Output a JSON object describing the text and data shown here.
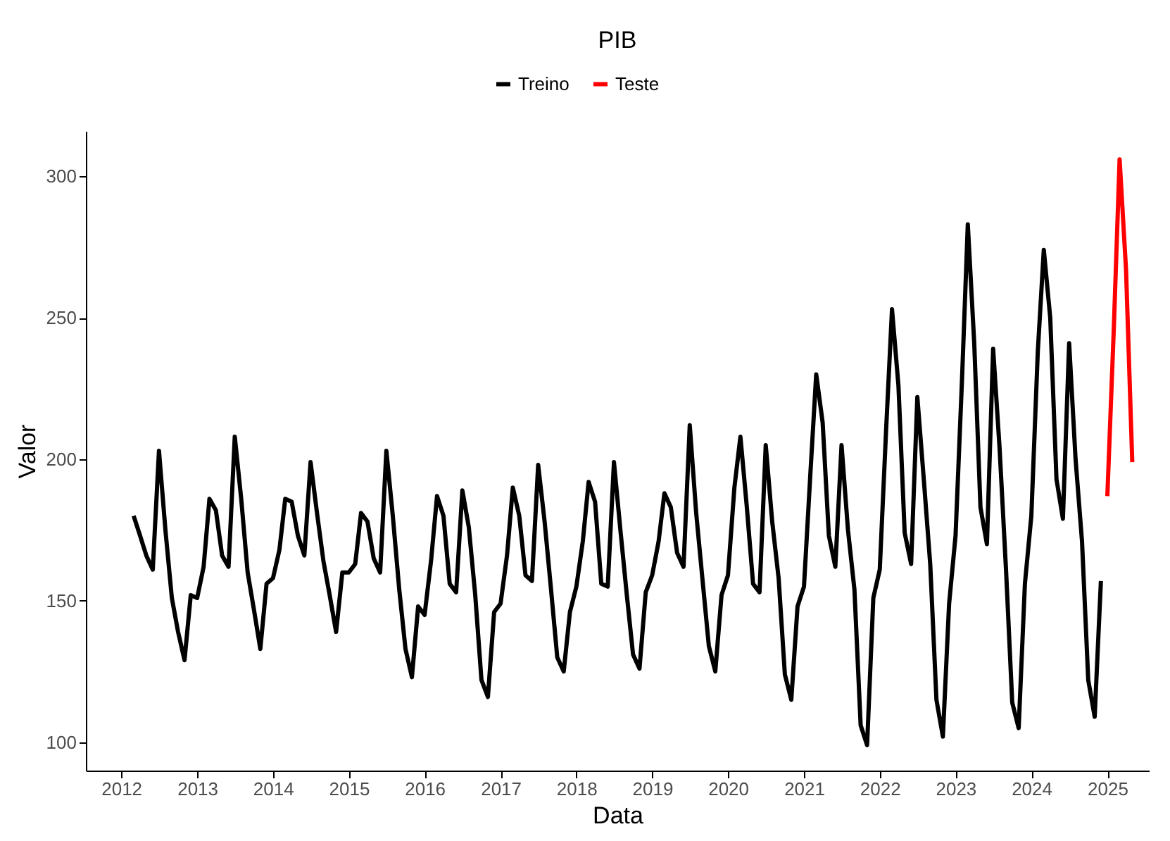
{
  "chart_data": {
    "type": "line",
    "title": "PIB",
    "xlabel": "Data",
    "ylabel": "Valor",
    "xlim": [
      "2011-07-15",
      "2025-07-20"
    ],
    "xticks": [
      {
        "value": "2012",
        "label": "2012"
      },
      {
        "value": "2013",
        "label": "2013"
      },
      {
        "value": "2014",
        "label": "2014"
      },
      {
        "value": "2015",
        "label": "2015"
      },
      {
        "value": "2016",
        "label": "2016"
      },
      {
        "value": "2017",
        "label": "2017"
      },
      {
        "value": "2018",
        "label": "2018"
      },
      {
        "value": "2019",
        "label": "2019"
      },
      {
        "value": "2020",
        "label": "2020"
      },
      {
        "value": "2021",
        "label": "2021"
      },
      {
        "value": "2022",
        "label": "2022"
      },
      {
        "value": "2023",
        "label": "2023"
      },
      {
        "value": "2024",
        "label": "2024"
      },
      {
        "value": "2025",
        "label": "2025"
      }
    ],
    "ylim": [
      90,
      316
    ],
    "yticks": [
      100,
      150,
      200,
      250,
      300
    ],
    "grid": false,
    "legend": "top",
    "line_style": "solid",
    "marker": "none",
    "series": [
      {
        "name": "Treino",
        "color": "#000000",
        "x": [
          "2012-03",
          "2012-04",
          "2012-05",
          "2012-06",
          "2012-07",
          "2012-08",
          "2012-09",
          "2012-10",
          "2012-11",
          "2012-12",
          "2013-01",
          "2013-02",
          "2013-03",
          "2013-04",
          "2013-05",
          "2013-06",
          "2013-07",
          "2013-08",
          "2013-09",
          "2013-10",
          "2013-11",
          "2013-12",
          "2014-01",
          "2014-02",
          "2014-03",
          "2014-04",
          "2014-05",
          "2014-06",
          "2014-07",
          "2014-08",
          "2014-09",
          "2014-10",
          "2014-11",
          "2014-12",
          "2015-01",
          "2015-02",
          "2015-03",
          "2015-04",
          "2015-05",
          "2015-06",
          "2015-07",
          "2015-08",
          "2015-09",
          "2015-10",
          "2015-11",
          "2015-12",
          "2016-01",
          "2016-02",
          "2016-03",
          "2016-04",
          "2016-05",
          "2016-06",
          "2016-07",
          "2016-08",
          "2016-09",
          "2016-10",
          "2016-11",
          "2016-12",
          "2017-01",
          "2017-02",
          "2017-03",
          "2017-04",
          "2017-05",
          "2017-06",
          "2017-07",
          "2017-08",
          "2017-09",
          "2017-10",
          "2017-11",
          "2017-12",
          "2018-01",
          "2018-02",
          "2018-03",
          "2018-04",
          "2018-05",
          "2018-06",
          "2018-07",
          "2018-08",
          "2018-09",
          "2018-10",
          "2018-11",
          "2018-12",
          "2019-01",
          "2019-02",
          "2019-03",
          "2019-04",
          "2019-05",
          "2019-06",
          "2019-07",
          "2019-08",
          "2019-09",
          "2019-10",
          "2019-11",
          "2019-12",
          "2020-01",
          "2020-02",
          "2020-03",
          "2020-04",
          "2020-05",
          "2020-06",
          "2020-07",
          "2020-08",
          "2020-09",
          "2020-10",
          "2020-11",
          "2020-12",
          "2021-01",
          "2021-02",
          "2021-03",
          "2021-04",
          "2021-05",
          "2021-06",
          "2021-07",
          "2021-08",
          "2021-09",
          "2021-10",
          "2021-11",
          "2021-12",
          "2022-01",
          "2022-02",
          "2022-03",
          "2022-04",
          "2022-05",
          "2022-06",
          "2022-07",
          "2022-08",
          "2022-09",
          "2022-10",
          "2022-11",
          "2022-12",
          "2023-01",
          "2023-02",
          "2023-03",
          "2023-04",
          "2023-05",
          "2023-06",
          "2023-07",
          "2023-08",
          "2023-09",
          "2023-10",
          "2023-11",
          "2023-12",
          "2024-01",
          "2024-02",
          "2024-03",
          "2024-04",
          "2024-05",
          "2024-06",
          "2024-07",
          "2024-08",
          "2024-09",
          "2024-10",
          "2024-11",
          "2024-12"
        ],
        "values": [
          180,
          173,
          166,
          161,
          203,
          175,
          151,
          139,
          129,
          152,
          151,
          162,
          186,
          182,
          166,
          162,
          208,
          186,
          160,
          147,
          133,
          156,
          158,
          168,
          186,
          185,
          173,
          166,
          199,
          181,
          164,
          152,
          139,
          160,
          160,
          163,
          181,
          178,
          165,
          160,
          203,
          180,
          154,
          133,
          123,
          148,
          145,
          164,
          187,
          180,
          156,
          153,
          189,
          176,
          152,
          122,
          116,
          146,
          149,
          166,
          190,
          180,
          159,
          157,
          198,
          178,
          154,
          130,
          125,
          146,
          155,
          171,
          192,
          185,
          156,
          155,
          199,
          175,
          152,
          131,
          126,
          153,
          159,
          171,
          188,
          183,
          167,
          162,
          212,
          181,
          157,
          134,
          125,
          152,
          159,
          190,
          208,
          183,
          156,
          153,
          205,
          178,
          158,
          124,
          115,
          148,
          155,
          195,
          230,
          213,
          173,
          162,
          205,
          175,
          154,
          106,
          99,
          151,
          161,
          211,
          253,
          226,
          174,
          163,
          222,
          193,
          163,
          115,
          102,
          149,
          173,
          228,
          283,
          241,
          183,
          170,
          239,
          204,
          161,
          114,
          105,
          156,
          180,
          238,
          274,
          250,
          193,
          179,
          241,
          200,
          171,
          122,
          109,
          157
        ]
      },
      {
        "name": "Teste",
        "color": "#ff0000",
        "x": [
          "2025-01",
          "2025-02",
          "2025-03",
          "2025-04",
          "2025-05"
        ],
        "values": [
          187,
          246,
          306,
          267,
          199
        ]
      }
    ]
  }
}
